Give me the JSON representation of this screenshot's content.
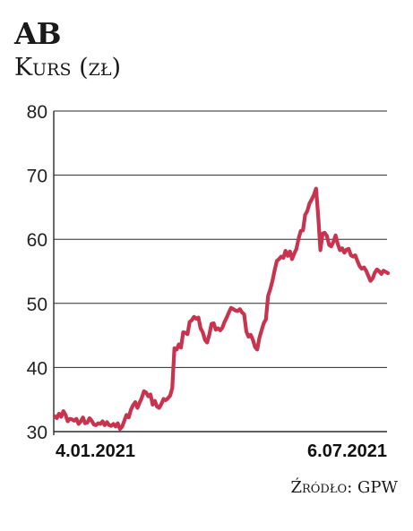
{
  "header": {
    "title": "AB",
    "subtitle": "Kurs (zł)"
  },
  "footer": {
    "source": "Źródło: GPW"
  },
  "chart_data": {
    "type": "line",
    "title": "AB",
    "ylabel": "Kurs (zł)",
    "xlabel": "",
    "ylim": [
      30,
      80
    ],
    "y_ticks": [
      30,
      40,
      50,
      60,
      70,
      80
    ],
    "x_tick_labels": [
      "4.01.2021",
      "6.07.2021"
    ],
    "grid": "horizontal",
    "line_color": "#c8344f",
    "series": [
      {
        "values": [
          32.4,
          32.1,
          32.8,
          32.3,
          33.2,
          32.6,
          31.6,
          32.0,
          31.9,
          31.7,
          32.0,
          31.2,
          31.6,
          32.2,
          31.3,
          31.4,
          32.1,
          31.7,
          31.1,
          31.0,
          31.3,
          31.2,
          31.6,
          31.0,
          31.5,
          31.0,
          30.9,
          31.2,
          30.8,
          31.3,
          30.4,
          30.8,
          31.7,
          32.6,
          32.2,
          33.4,
          34.1,
          34.6,
          33.7,
          34.5,
          35.3,
          36.3,
          36.1,
          35.5,
          35.8,
          34.2,
          34.8,
          33.9,
          33.7,
          34.3,
          35.1,
          34.9,
          35.2,
          35.6,
          36.8,
          43.0,
          42.8,
          43.6,
          43.1,
          45.5,
          45.4,
          45.2,
          47.1,
          47.4,
          47.9,
          47.6,
          47.8,
          46.1,
          45.5,
          44.3,
          43.9,
          45.1,
          46.8,
          46.9,
          45.9,
          46.1,
          45.8,
          46.2,
          47.1,
          47.8,
          48.6,
          49.3,
          49.1,
          48.9,
          48.8,
          49.1,
          48.6,
          48.3,
          45.6,
          44.8,
          45.1,
          44.3,
          43.2,
          42.8,
          44.6,
          45.8,
          46.9,
          47.5,
          51.2,
          52.2,
          53.5,
          55.2,
          56.6,
          56.9,
          57.3,
          57.1,
          58.2,
          57.4,
          58.1,
          56.9,
          57.8,
          58.5,
          60.1,
          61.3,
          61.4,
          63.8,
          64.4,
          65.6,
          66.2,
          66.9,
          67.9,
          63.6,
          58.3,
          60.9,
          61.0,
          60.5,
          59.1,
          58.9,
          59.6,
          60.6,
          59.2,
          58.3,
          58.6,
          57.9,
          58.4,
          58.5,
          57.5,
          57.3,
          57.5,
          56.6,
          55.8,
          55.4,
          55.6,
          55.1,
          54.3,
          53.5,
          53.9,
          54.8,
          55.3,
          55.0,
          54.6,
          55.1,
          54.9,
          54.7
        ]
      }
    ]
  }
}
